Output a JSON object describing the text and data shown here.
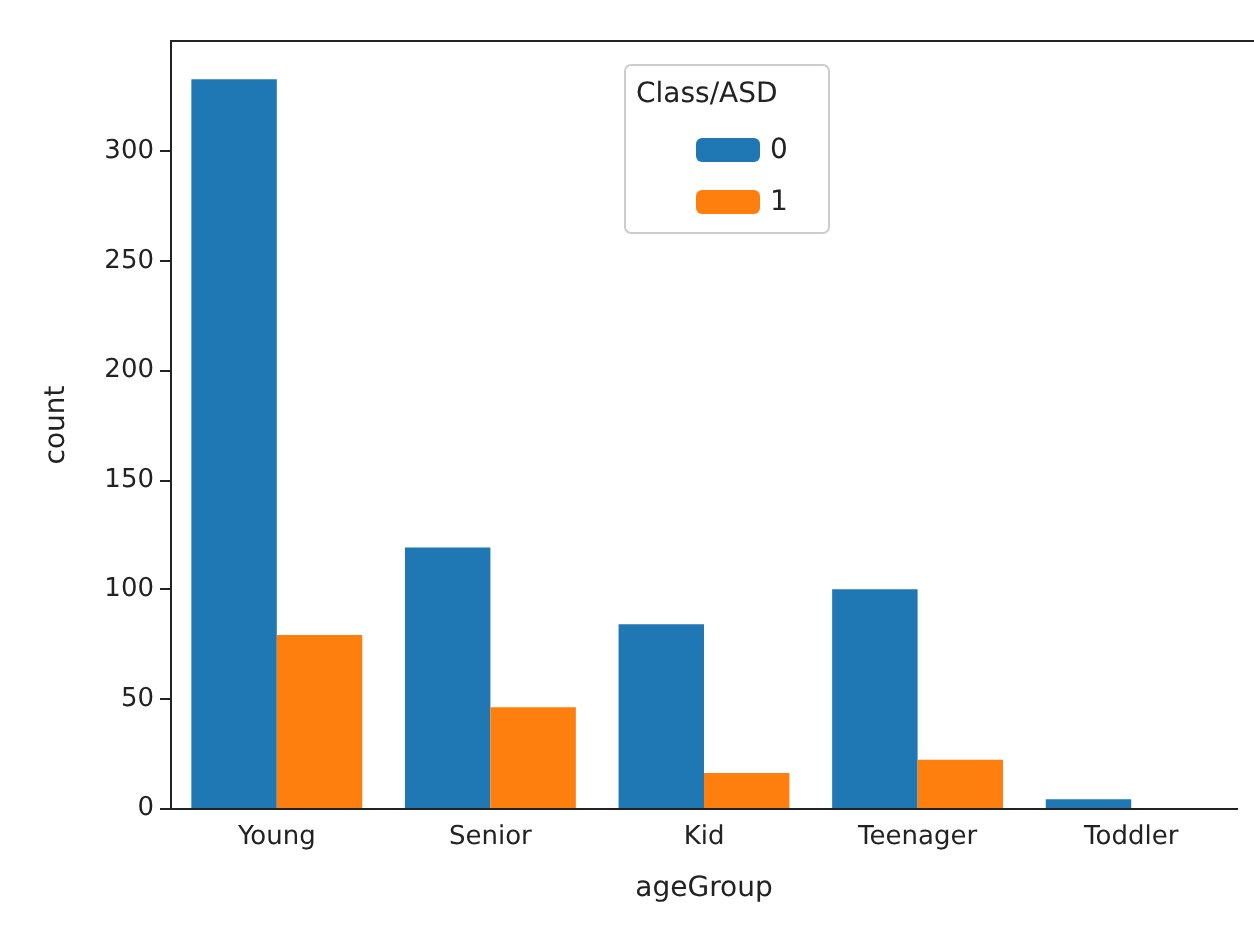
{
  "chart_data": {
    "type": "bar",
    "xlabel": "ageGroup",
    "ylabel": "count",
    "legend_title": "Class/ASD",
    "categories": [
      "Young",
      "Senior",
      "Kid",
      "Teenager",
      "Toddler"
    ],
    "series": [
      {
        "name": "0",
        "color": "#1f77b4",
        "values": [
          333,
          119,
          84,
          100,
          4
        ]
      },
      {
        "name": "1",
        "color": "#ff7f0e",
        "values": [
          79,
          46,
          16,
          22,
          0
        ]
      }
    ],
    "ylim": [
      0,
      350
    ],
    "yticks": [
      0,
      50,
      100,
      150,
      200,
      250,
      300
    ],
    "grid": false,
    "legend": "top"
  }
}
